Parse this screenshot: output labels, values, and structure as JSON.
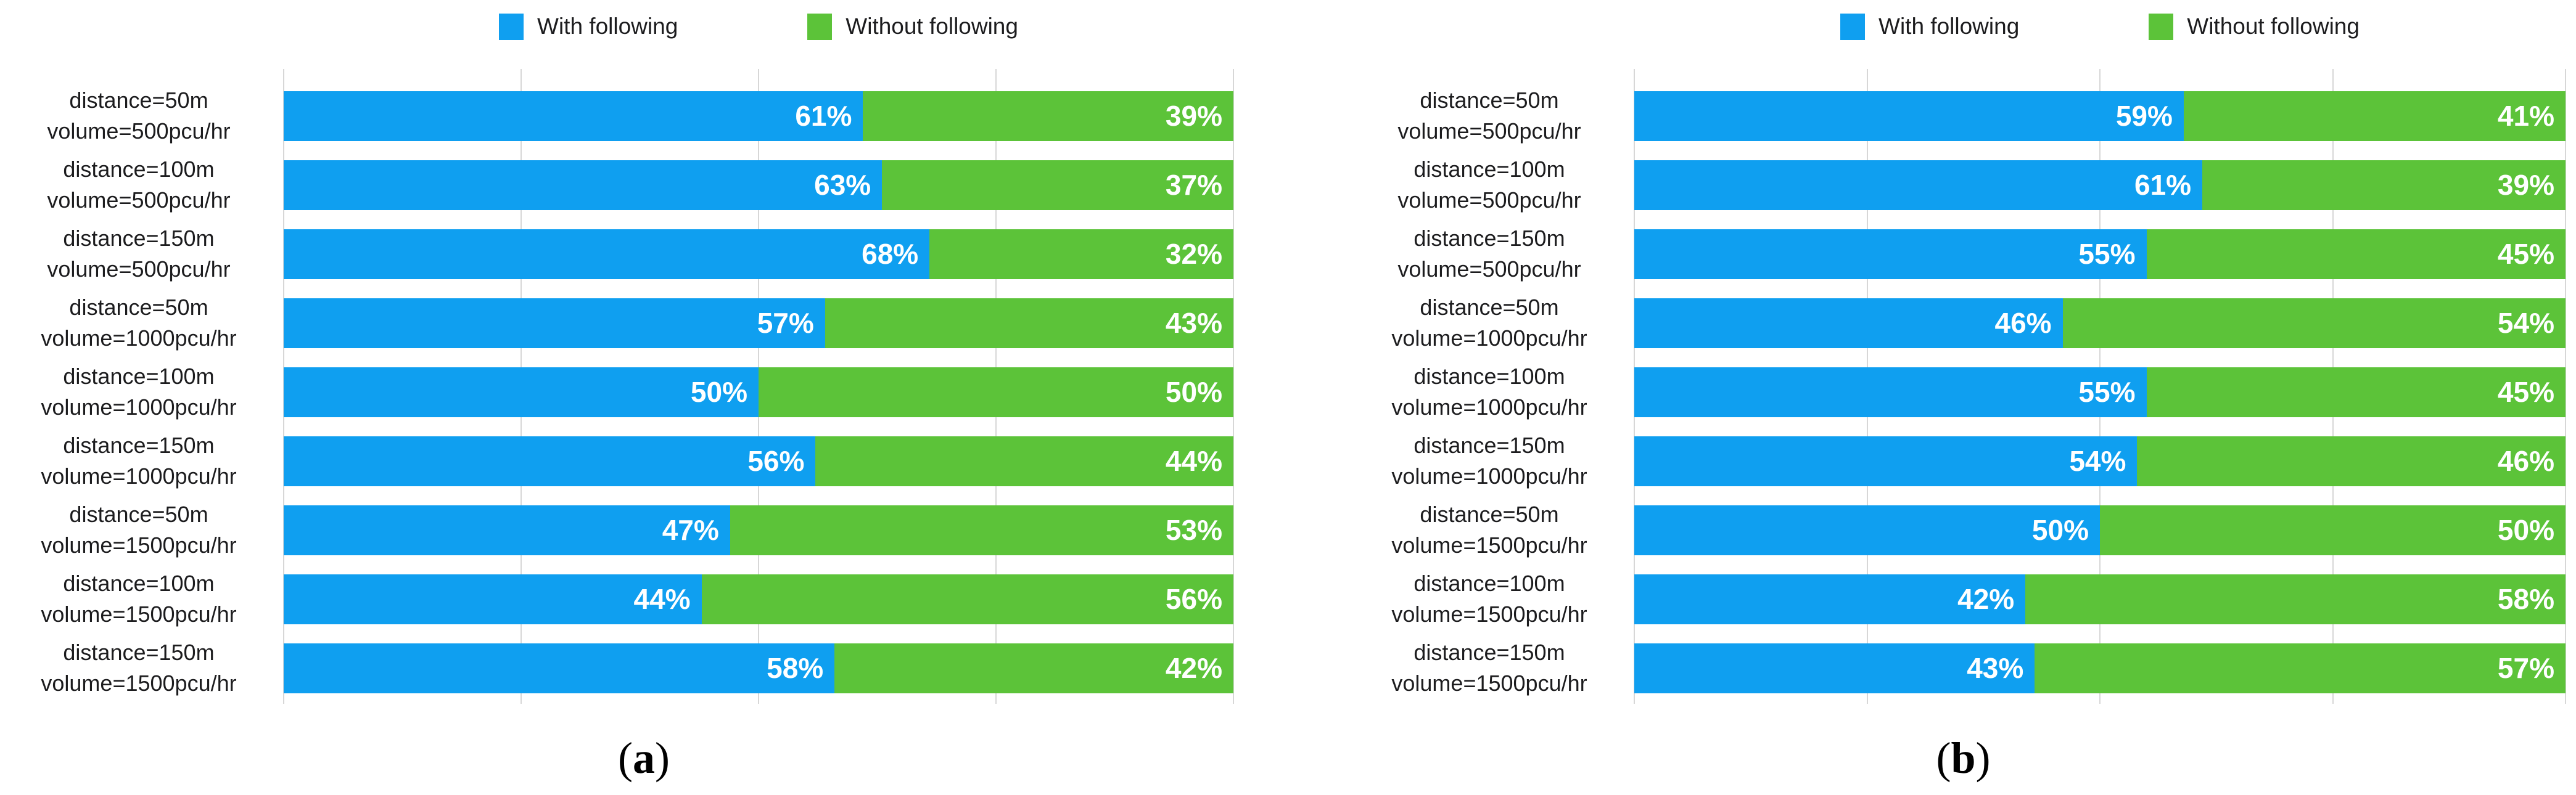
{
  "page": {
    "background": "#ffffff"
  },
  "chart_data": [
    {
      "type": "bar",
      "stacked": true,
      "orientation": "horizontal",
      "panel": "a",
      "caption_letter": "a",
      "caption_paren_open": "(",
      "caption_paren_close": ")",
      "legend_position": "top",
      "value_label_format": "{v}%",
      "axis": {
        "xlim": [
          0,
          100
        ],
        "gridlines_percent": [
          0,
          25,
          50,
          75,
          100
        ],
        "grid_color": "#d7d7d7",
        "grid_on": true
      },
      "categories": [
        [
          "distance=50m",
          "volume=500pcu/hr"
        ],
        [
          "distance=100m",
          "volume=500pcu/hr"
        ],
        [
          "distance=150m",
          "volume=500pcu/hr"
        ],
        [
          "distance=50m",
          "volume=1000pcu/hr"
        ],
        [
          "distance=100m",
          "volume=1000pcu/hr"
        ],
        [
          "distance=150m",
          "volume=1000pcu/hr"
        ],
        [
          "distance=50m",
          "volume=1500pcu/hr"
        ],
        [
          "distance=100m",
          "volume=1500pcu/hr"
        ],
        [
          "distance=150m",
          "volume=1500pcu/hr"
        ]
      ],
      "series": [
        {
          "name": "With following",
          "color": "#0f9ff0",
          "values": [
            61,
            63,
            68,
            57,
            50,
            56,
            47,
            44,
            58
          ]
        },
        {
          "name": "Without following",
          "color": "#5cc339",
          "values": [
            39,
            37,
            32,
            43,
            50,
            44,
            53,
            56,
            42
          ]
        }
      ]
    },
    {
      "type": "bar",
      "stacked": true,
      "orientation": "horizontal",
      "panel": "b",
      "caption_letter": "b",
      "caption_paren_open": "(",
      "caption_paren_close": ")",
      "legend_position": "top",
      "value_label_format": "{v}%",
      "axis": {
        "xlim": [
          0,
          100
        ],
        "gridlines_percent": [
          0,
          25,
          50,
          75,
          100
        ],
        "grid_color": "#d7d7d7",
        "grid_on": true
      },
      "categories": [
        [
          "distance=50m",
          "volume=500pcu/hr"
        ],
        [
          "distance=100m",
          "volume=500pcu/hr"
        ],
        [
          "distance=150m",
          "volume=500pcu/hr"
        ],
        [
          "distance=50m",
          "volume=1000pcu/hr"
        ],
        [
          "distance=100m",
          "volume=1000pcu/hr"
        ],
        [
          "distance=150m",
          "volume=1000pcu/hr"
        ],
        [
          "distance=50m",
          "volume=1500pcu/hr"
        ],
        [
          "distance=100m",
          "volume=1500pcu/hr"
        ],
        [
          "distance=150m",
          "volume=1500pcu/hr"
        ]
      ],
      "series": [
        {
          "name": "With following",
          "color": "#0f9ff0",
          "values": [
            59,
            61,
            55,
            46,
            55,
            54,
            50,
            42,
            43
          ]
        },
        {
          "name": "Without following",
          "color": "#5cc339",
          "values": [
            41,
            39,
            45,
            54,
            45,
            46,
            50,
            58,
            57
          ]
        }
      ]
    }
  ]
}
